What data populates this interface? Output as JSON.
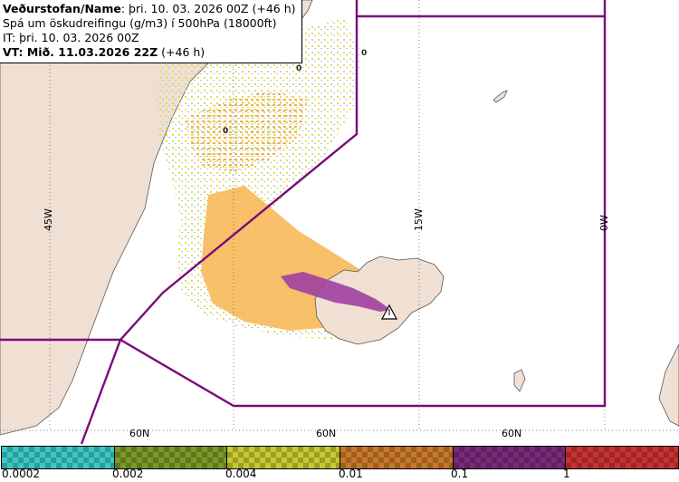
{
  "header": {
    "name_label": "Veðurstofan/Name",
    "name_value": ": þri. 10. 03. 2026 00Z (+46 h)",
    "product": "Spá um öskudreifingu (g/m3) í 500hPa (18000ft)",
    "issue_time": "IT: þri. 10. 03. 2026 00Z",
    "valid_label": "VT: Mið. 11.03.2026 22Z",
    "valid_offset": " (+46 h)"
  },
  "grid_labels": {
    "lon_45w": "45W",
    "lon_15w": "15W",
    "lon_0w": "0W",
    "lat_60n_a": "60N",
    "lat_60n_b": "60N",
    "lat_60n_c": "60N"
  },
  "contour_labels": [
    "0",
    "0",
    "0"
  ],
  "legend": {
    "colors": [
      "#3cc8c8",
      "#7a9a28",
      "#c8c832",
      "#c8782a",
      "#7a2a7a",
      "#c83232"
    ],
    "ticks": [
      "0.0002",
      "0.002",
      "0.004",
      "0.01",
      "0.1",
      "1"
    ]
  },
  "colors": {
    "land": "#f0e0d4",
    "sea": "#ffffff",
    "boundary": "#7a0a7a",
    "ash_low": "#f6e27a",
    "ash_mid": "#f7b95a",
    "ash_high": "#a040a0"
  },
  "icons": [
    "volcano-warning-icon"
  ]
}
